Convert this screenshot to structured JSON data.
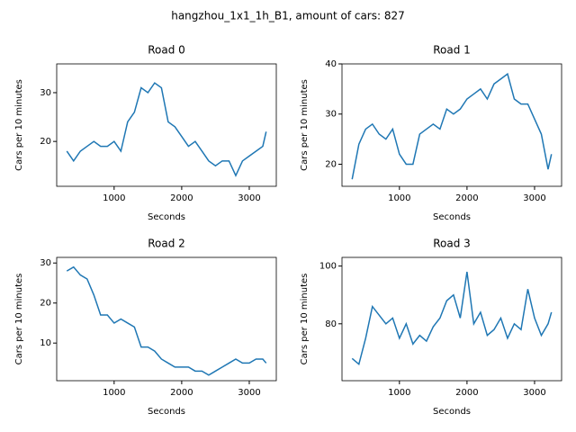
{
  "title": "hangzhou_1x1_1h_B1, amount of cars: 827",
  "chart_data": [
    {
      "type": "line",
      "title": "Road 0",
      "x_label": "Seconds",
      "y_label": "Cars per 10 minutes",
      "color": "#1f77b4",
      "x": [
        300,
        400,
        500,
        600,
        700,
        800,
        900,
        1000,
        1100,
        1200,
        1300,
        1400,
        1500,
        1600,
        1700,
        1800,
        1900,
        2000,
        2100,
        2200,
        2300,
        2400,
        2500,
        2600,
        2700,
        2800,
        2900,
        3000,
        3100,
        3200,
        3250
      ],
      "values": [
        18,
        16,
        18,
        19,
        20,
        19,
        19,
        20,
        18,
        24,
        26,
        31,
        30,
        32,
        31,
        24,
        23,
        21,
        19,
        20,
        18,
        16,
        15,
        16,
        16,
        13,
        16,
        17,
        18,
        19,
        22
      ],
      "xlim": [
        150,
        3400
      ],
      "xticks": [
        1000,
        2000,
        3000
      ],
      "ylim": [
        10.8,
        35.9
      ],
      "yticks": [
        20,
        30
      ]
    },
    {
      "type": "line",
      "title": "Road 1",
      "x_label": "Seconds",
      "y_label": "Cars per 10 minutes",
      "color": "#1f77b4",
      "x": [
        300,
        400,
        500,
        600,
        700,
        800,
        900,
        1000,
        1100,
        1200,
        1300,
        1400,
        1500,
        1600,
        1700,
        1800,
        1900,
        2000,
        2100,
        2200,
        2300,
        2400,
        2500,
        2600,
        2700,
        2800,
        2900,
        3000,
        3100,
        3200,
        3250
      ],
      "values": [
        17,
        24,
        27,
        28,
        26,
        25,
        27,
        22,
        20,
        20,
        26,
        27,
        28,
        27,
        31,
        30,
        31,
        33,
        34,
        35,
        33,
        36,
        37,
        38,
        33,
        32,
        32,
        29,
        26,
        19,
        22
      ],
      "xlim": [
        150,
        3400
      ],
      "xticks": [
        1000,
        2000,
        3000
      ],
      "ylim": [
        15.6,
        40
      ],
      "yticks": [
        20,
        30,
        40
      ]
    },
    {
      "type": "line",
      "title": "Road 2",
      "x_label": "Seconds",
      "y_label": "Cars per 10 minutes",
      "color": "#1f77b4",
      "x": [
        300,
        400,
        500,
        600,
        700,
        800,
        900,
        1000,
        1100,
        1200,
        1300,
        1400,
        1500,
        1600,
        1700,
        1800,
        1900,
        2000,
        2100,
        2200,
        2300,
        2400,
        2500,
        2600,
        2700,
        2800,
        2900,
        3000,
        3100,
        3200,
        3250
      ],
      "values": [
        28,
        29,
        27,
        26,
        22,
        17,
        17,
        15,
        16,
        15,
        14,
        9,
        9,
        8,
        6,
        5,
        4,
        4,
        4,
        3,
        3,
        2,
        3,
        4,
        5,
        6,
        5,
        5,
        6,
        6,
        5
      ],
      "xlim": [
        150,
        3400
      ],
      "xticks": [
        1000,
        2000,
        3000
      ],
      "ylim": [
        0.6,
        31.4
      ],
      "yticks": [
        10,
        20,
        30
      ]
    },
    {
      "type": "line",
      "title": "Road 3",
      "x_label": "Seconds",
      "y_label": "Cars per 10 minutes",
      "color": "#1f77b4",
      "x": [
        300,
        400,
        500,
        600,
        700,
        800,
        900,
        1000,
        1100,
        1200,
        1300,
        1400,
        1500,
        1600,
        1700,
        1800,
        1900,
        2000,
        2100,
        2200,
        2300,
        2400,
        2500,
        2600,
        2700,
        2800,
        2900,
        3000,
        3100,
        3200,
        3250
      ],
      "values": [
        68,
        66,
        75,
        86,
        83,
        80,
        82,
        75,
        80,
        73,
        76,
        74,
        79,
        82,
        88,
        90,
        82,
        98,
        80,
        84,
        76,
        78,
        82,
        75,
        80,
        78,
        92,
        82,
        76,
        80,
        84
      ],
      "xlim": [
        150,
        3400
      ],
      "xticks": [
        1000,
        2000,
        3000
      ],
      "ylim": [
        60.3,
        103
      ],
      "yticks": [
        80,
        100
      ]
    }
  ]
}
